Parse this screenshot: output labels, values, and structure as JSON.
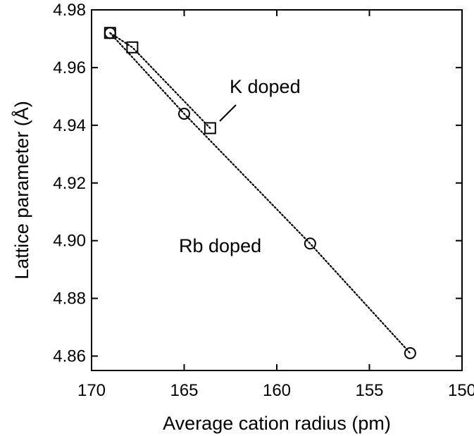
{
  "chart_data": {
    "type": "scatter",
    "xlabel": "Average cation radius (pm)",
    "ylabel": "Lattice parameter (Å)",
    "xlim": [
      170,
      150
    ],
    "ylim": [
      4.855,
      4.98
    ],
    "x_reversed": true,
    "x_ticks": [
      170,
      165,
      160,
      155,
      150
    ],
    "y_ticks": [
      4.86,
      4.88,
      4.9,
      4.92,
      4.94,
      4.96,
      4.98
    ],
    "x_tick_labels": [
      "170",
      "165",
      "160",
      "155",
      "150"
    ],
    "y_tick_labels": [
      "4.86",
      "4.88",
      "4.90",
      "4.92",
      "4.94",
      "4.96",
      "4.98"
    ],
    "grid": false,
    "series": [
      {
        "name": "K doped",
        "marker": "square",
        "line": "dotted",
        "x": [
          169.0,
          167.8,
          163.6
        ],
        "y": [
          4.972,
          4.967,
          4.939
        ]
      },
      {
        "name": "Rb doped",
        "marker": "circle",
        "line": "dotted",
        "x": [
          169.0,
          165.0,
          158.2,
          152.8
        ],
        "y": [
          4.972,
          4.944,
          4.899,
          4.861
        ]
      }
    ],
    "annotations": [
      {
        "text": "K doped",
        "series": 0
      },
      {
        "text": "Rb doped",
        "series": 1
      }
    ]
  }
}
